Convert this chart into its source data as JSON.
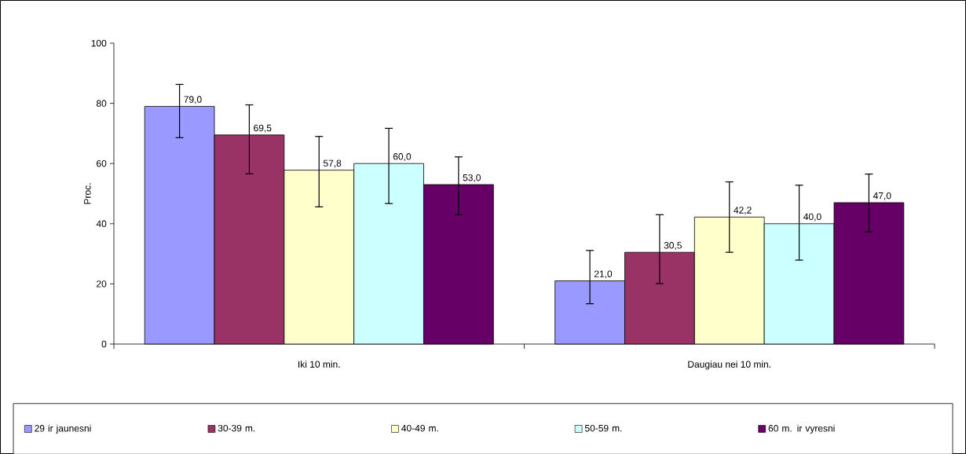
{
  "chart_data": {
    "type": "bar",
    "ylabel": "Proc.",
    "categories": [
      "Iki 10 min.",
      "Daugiau nei 10 min."
    ],
    "series": [
      {
        "name": "29 ir jaunesni",
        "color": "#9999ff",
        "values": [
          79.0,
          21.0
        ],
        "value_labels": [
          "79,0",
          "21,0"
        ],
        "errors": [
          [
            68.6,
            86.3
          ],
          [
            13.4,
            31.1
          ]
        ]
      },
      {
        "name": "30-39 m.",
        "color": "#993366",
        "values": [
          69.5,
          30.5
        ],
        "value_labels": [
          "69,5",
          "30,5"
        ],
        "errors": [
          [
            56.6,
            79.5
          ],
          [
            20.1,
            43.0
          ]
        ]
      },
      {
        "name": "40-49 m.",
        "color": "#ffffcc",
        "values": [
          57.8,
          42.2
        ],
        "value_labels": [
          "57,8",
          "42,2"
        ],
        "errors": [
          [
            45.6,
            69.0
          ],
          [
            30.5,
            53.9
          ]
        ]
      },
      {
        "name": "50-59 m.",
        "color": "#ccffff",
        "values": [
          60.0,
          40.0
        ],
        "value_labels": [
          "60,0",
          "40,0"
        ],
        "errors": [
          [
            46.7,
            71.7
          ],
          [
            27.9,
            52.8
          ]
        ]
      },
      {
        "name": "60 m. ir vyresni",
        "color": "#660066",
        "values": [
          53.0,
          47.0
        ],
        "value_labels": [
          "53,0",
          "47,0"
        ],
        "errors": [
          [
            43.0,
            62.2
          ],
          [
            37.3,
            56.5
          ]
        ]
      }
    ],
    "ylim": [
      0,
      100
    ],
    "yticks": [
      0,
      20,
      40,
      60,
      80,
      100
    ],
    "grid": false,
    "legend": "bottom"
  }
}
